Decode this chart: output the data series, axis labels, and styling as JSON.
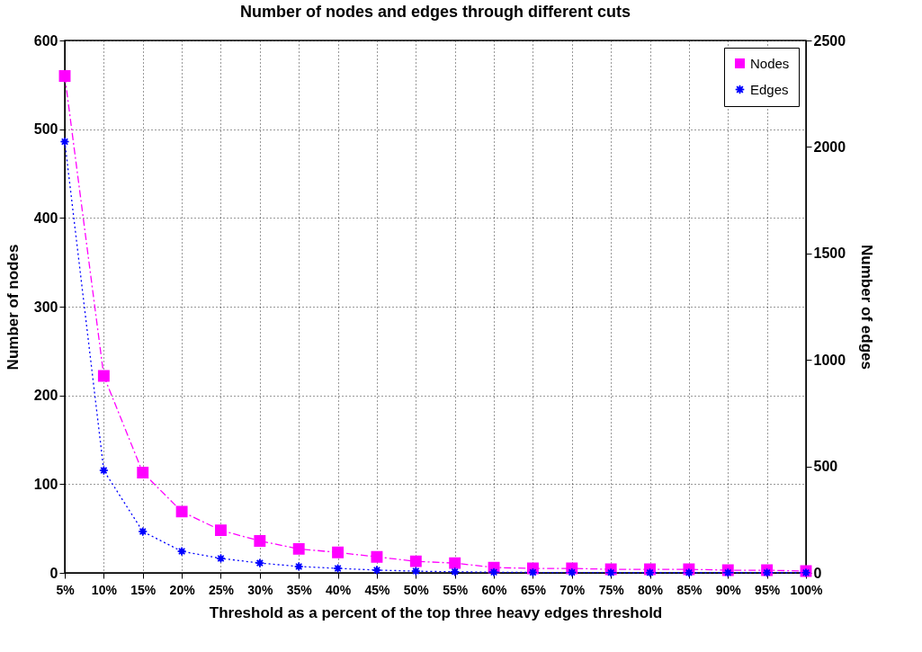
{
  "chart_data": {
    "type": "line",
    "title": "Number of nodes and edges through different cuts",
    "xlabel": "Threshold as a percent of the top three heavy edges threshold",
    "ylabel": "Number of nodes",
    "y2label": "Number of edges",
    "categories": [
      "5%",
      "10%",
      "15%",
      "20%",
      "25%",
      "30%",
      "35%",
      "40%",
      "45%",
      "50%",
      "55%",
      "60%",
      "65%",
      "70%",
      "75%",
      "80%",
      "85%",
      "90%",
      "95%",
      "100%"
    ],
    "series": [
      {
        "name": "Nodes",
        "color": "#ff00ff",
        "marker": "square",
        "line_style": "dashed",
        "values": [
          560,
          222,
          113,
          69,
          48,
          36,
          27,
          23,
          18,
          13,
          11,
          6,
          5,
          5,
          4,
          4,
          4,
          3,
          3,
          2
        ]
      },
      {
        "name": "Edges",
        "color": "#0000ff",
        "marker": "star",
        "line_style": "dotted",
        "axis": "y2",
        "values": [
          2025,
          481,
          194,
          101,
          68,
          46,
          30,
          21,
          13,
          8,
          5,
          3,
          2,
          2,
          1,
          1,
          1,
          1,
          1,
          1
        ]
      }
    ],
    "ylim": [
      0,
      600
    ],
    "yticks": [
      0,
      100,
      200,
      300,
      400,
      500,
      600
    ],
    "y2lim": [
      0,
      2500
    ],
    "y2ticks": [
      0,
      500,
      1000,
      1500,
      2000,
      2500
    ],
    "grid": true,
    "legend": "top right"
  }
}
